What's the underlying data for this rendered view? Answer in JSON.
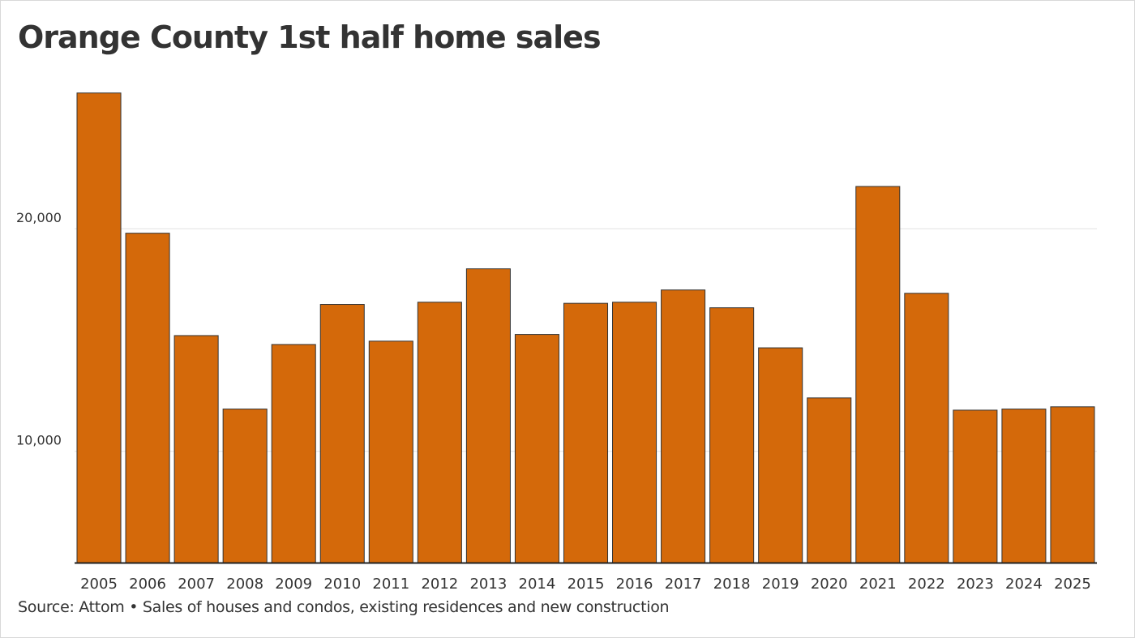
{
  "chart_data": {
    "type": "bar",
    "title": "Orange County 1st half home sales",
    "xlabel": "",
    "ylabel": "",
    "categories": [
      "2005",
      "2006",
      "2007",
      "2008",
      "2009",
      "2010",
      "2011",
      "2012",
      "2013",
      "2014",
      "2015",
      "2016",
      "2017",
      "2018",
      "2019",
      "2020",
      "2021",
      "2022",
      "2023",
      "2024",
      "2025"
    ],
    "values": [
      26100,
      19800,
      15200,
      11900,
      14800,
      16600,
      14950,
      16700,
      18200,
      15250,
      16650,
      16700,
      17250,
      16450,
      14650,
      12400,
      21900,
      17100,
      11850,
      11900,
      12000
    ],
    "ylim": [
      5000,
      27000
    ],
    "yticks": [
      10000,
      20000
    ],
    "ytick_labels": [
      "10,000",
      "20,000"
    ],
    "grid": true,
    "bar_color": "#d4690a",
    "bar_edge_color": "#333333",
    "source": "Source: Attom • Sales of houses and condos, existing residences and new construction"
  }
}
